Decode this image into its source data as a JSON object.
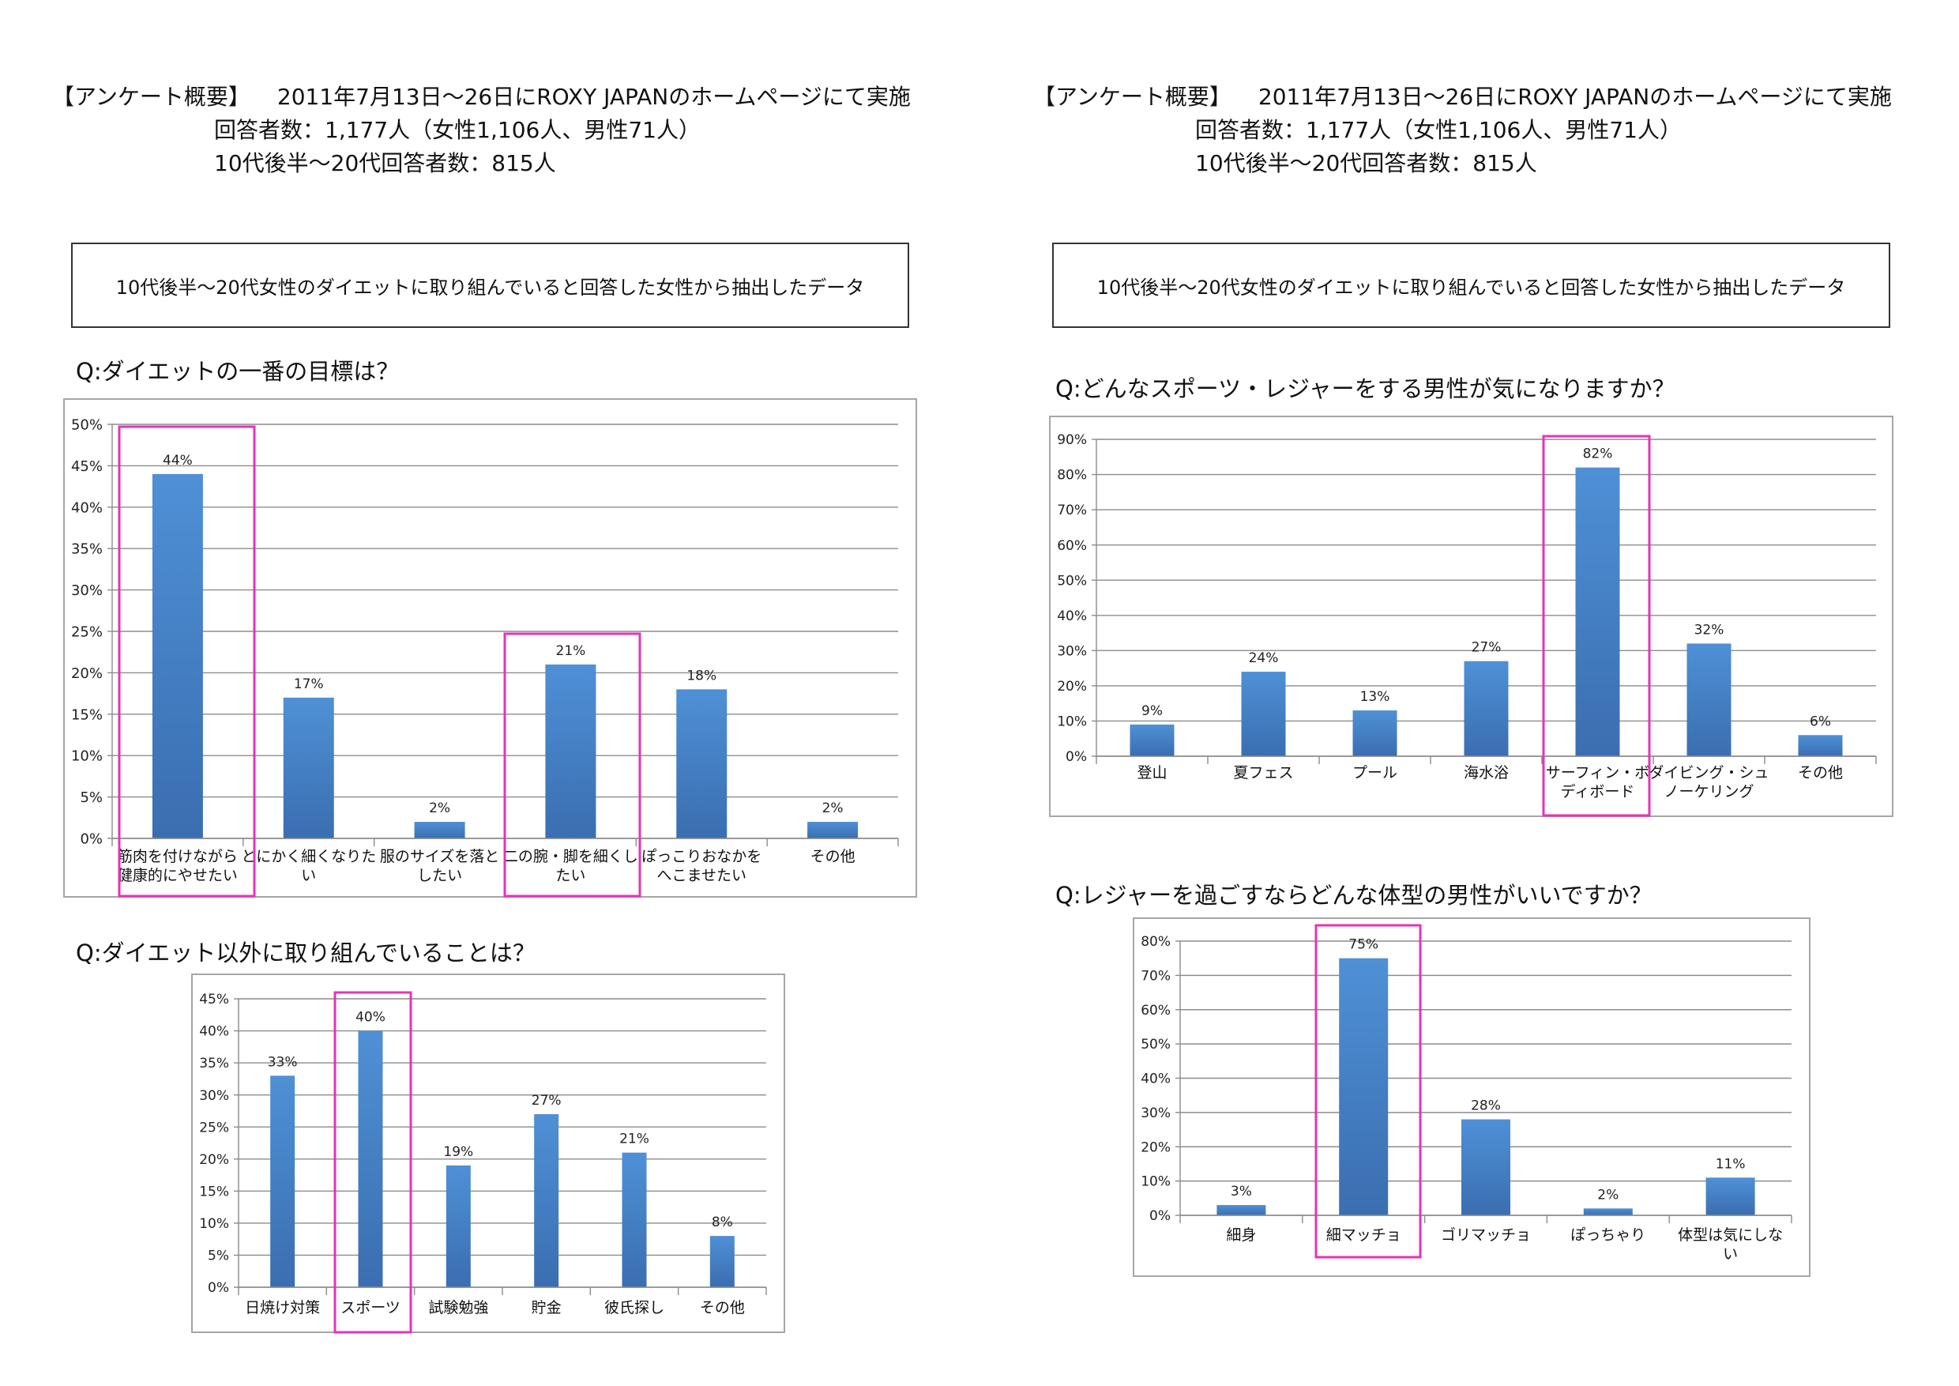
{
  "survey": {
    "label": "【アンケート概要】",
    "period": "2011年7月13日〜26日にROXY JAPANのホームページにて実施",
    "respondents": "回答者数：1,177人（女性1,106人、男性71人）",
    "teens20s": "10代後半〜20代回答者数：815人"
  },
  "note": "10代後半〜20代女性のダイエットに取り組んでいると回答した女性から抽出したデータ",
  "colors": {
    "bar_top": "#4f90d6",
    "bar_bottom": "#3a6eb0",
    "highlight": "#e633b8",
    "grid": "#8c8c8c"
  },
  "chart_data": [
    {
      "type": "bar",
      "question": "Q:ダイエットの一番の目標は？",
      "categories": [
        [
          "筋肉を付けながら",
          "健康的にやせたい"
        ],
        [
          "とにかく細くなりた",
          "い"
        ],
        [
          "服のサイズを落と",
          "したい"
        ],
        [
          "二の腕・脚を細くし",
          "たい"
        ],
        [
          "ぽっこりおなかを",
          "へこませたい"
        ],
        [
          "その他"
        ]
      ],
      "values": [
        44,
        17,
        2,
        21,
        18,
        2
      ],
      "data_labels": [
        "44%",
        "17%",
        "2%",
        "21%",
        "18%",
        "2%"
      ],
      "ylim": [
        0,
        50
      ],
      "yticks": [
        "0%",
        "5%",
        "10%",
        "15%",
        "20%",
        "25%",
        "30%",
        "35%",
        "40%",
        "45%",
        "50%"
      ],
      "highlighted": [
        0,
        3
      ],
      "grid": true
    },
    {
      "type": "bar",
      "question": "Q:ダイエット以外に取り組んでいることは？",
      "categories": [
        [
          "日焼け対策"
        ],
        [
          "スポーツ"
        ],
        [
          "試験勉強"
        ],
        [
          "貯金"
        ],
        [
          "彼氏探し"
        ],
        [
          "その他"
        ]
      ],
      "values": [
        33,
        40,
        19,
        27,
        21,
        8
      ],
      "data_labels": [
        "33%",
        "40%",
        "19%",
        "27%",
        "21%",
        "8%"
      ],
      "ylim": [
        0,
        45
      ],
      "yticks": [
        "0%",
        "5%",
        "10%",
        "15%",
        "20%",
        "25%",
        "30%",
        "35%",
        "40%",
        "45%"
      ],
      "highlighted": [
        1
      ],
      "grid": true
    },
    {
      "type": "bar",
      "question": "Q:どんなスポーツ・レジャーをする男性が気になりますか？",
      "categories": [
        [
          "登山"
        ],
        [
          "夏フェス"
        ],
        [
          "プール"
        ],
        [
          "海水浴"
        ],
        [
          "サーフィン・ボ",
          "ディボード"
        ],
        [
          "ダイビング・シュ",
          "ノーケリング"
        ],
        [
          "その他"
        ]
      ],
      "values": [
        9,
        24,
        13,
        27,
        82,
        32,
        6
      ],
      "data_labels": [
        "9%",
        "24%",
        "13%",
        "27%",
        "82%",
        "32%",
        "6%"
      ],
      "ylim": [
        0,
        90
      ],
      "yticks": [
        "0%",
        "10%",
        "20%",
        "30%",
        "40%",
        "50%",
        "60%",
        "70%",
        "80%",
        "90%"
      ],
      "highlighted": [
        4
      ],
      "grid": true
    },
    {
      "type": "bar",
      "question": "Q:レジャーを過ごすならどんな体型の男性がいいですか？",
      "categories": [
        [
          "細身"
        ],
        [
          "細マッチョ"
        ],
        [
          "ゴリマッチョ"
        ],
        [
          "ぽっちゃり"
        ],
        [
          "体型は気にしな",
          "い"
        ]
      ],
      "values": [
        3,
        75,
        28,
        2,
        11
      ],
      "data_labels": [
        "3%",
        "75%",
        "28%",
        "2%",
        "11%"
      ],
      "ylim": [
        0,
        80
      ],
      "yticks": [
        "0%",
        "10%",
        "20%",
        "30%",
        "40%",
        "50%",
        "60%",
        "70%",
        "80%"
      ],
      "highlighted": [
        1
      ],
      "grid": true
    }
  ]
}
